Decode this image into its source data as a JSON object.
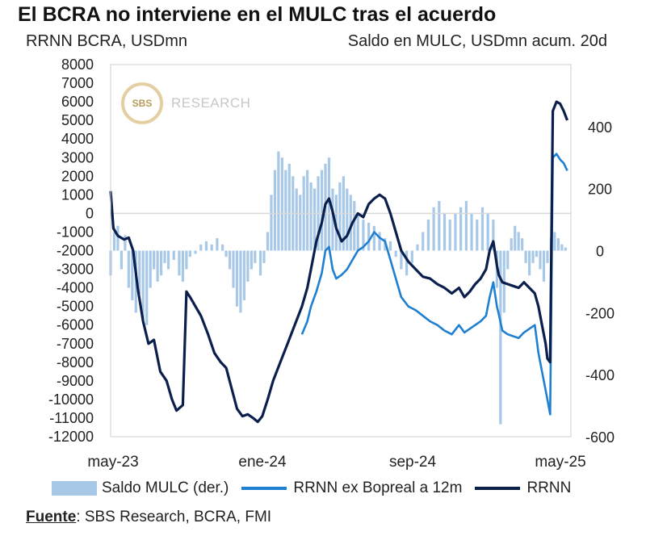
{
  "title": "El BCRA no interviene en el MULC tras el acuerdo",
  "subtitle_left": "RRNN BCRA, USDmn",
  "subtitle_right": "Saldo en MULC, USDmn acum. 20d",
  "logo": {
    "mark": "SBS",
    "text": "RESEARCH"
  },
  "source": {
    "label": "Fuente",
    "text": ": SBS Research, BCRA, FMI"
  },
  "legend": [
    {
      "name": "Saldo MULC (der.)",
      "type": "bar",
      "color": "#a8c8e8"
    },
    {
      "name": "RRNN ex Bopreal a 12m",
      "type": "line",
      "color": "#1f7fd1"
    },
    {
      "name": "RRNN",
      "type": "line",
      "color": "#0b1f4d"
    }
  ],
  "colors": {
    "bars": "#a8c8e8",
    "rrnn_ex": "#1f7fd1",
    "rrnn": "#0b1f4d",
    "grid": "#d9d9d9"
  },
  "chart_data": {
    "type": "line",
    "x_axis": {
      "ticks": [
        "may-23",
        "ene-24",
        "sep-24",
        "may-25"
      ]
    },
    "y_left": {
      "ylim": [
        -12000,
        8000
      ],
      "ticks": [
        8000,
        7000,
        6000,
        5000,
        4000,
        3000,
        2000,
        1000,
        0,
        -1000,
        -2000,
        -3000,
        -4000,
        -5000,
        -6000,
        -7000,
        -8000,
        -9000,
        -10000,
        -11000,
        -12000
      ]
    },
    "y_right": {
      "ylim": [
        -600,
        600
      ],
      "ticks": [
        400,
        200,
        0,
        -200,
        -400,
        -600
      ]
    },
    "series": [
      {
        "name": "RRNN",
        "axis": "left",
        "points": [
          [
            0,
            1200
          ],
          [
            3,
            -800
          ],
          [
            8,
            -1200
          ],
          [
            15,
            -1400
          ],
          [
            20,
            -1300
          ],
          [
            25,
            -2000
          ],
          [
            30,
            -4000
          ],
          [
            36,
            -5800
          ],
          [
            42,
            -7000
          ],
          [
            48,
            -6800
          ],
          [
            55,
            -8500
          ],
          [
            62,
            -9000
          ],
          [
            68,
            -10000
          ],
          [
            73,
            -10600
          ],
          [
            80,
            -10300
          ],
          [
            84,
            -4200
          ],
          [
            88,
            -4500
          ],
          [
            94,
            -5000
          ],
          [
            100,
            -5500
          ],
          [
            108,
            -6500
          ],
          [
            115,
            -7500
          ],
          [
            122,
            -8000
          ],
          [
            128,
            -8300
          ],
          [
            133,
            -9200
          ],
          [
            140,
            -10500
          ],
          [
            146,
            -10900
          ],
          [
            152,
            -10800
          ],
          [
            158,
            -11000
          ],
          [
            163,
            -11200
          ],
          [
            168,
            -10900
          ],
          [
            174,
            -10000
          ],
          [
            180,
            -9000
          ],
          [
            188,
            -8000
          ],
          [
            196,
            -7000
          ],
          [
            204,
            -6000
          ],
          [
            212,
            -5000
          ],
          [
            218,
            -4000
          ],
          [
            222,
            -3000
          ],
          [
            228,
            -1500
          ],
          [
            234,
            -500
          ],
          [
            238,
            500
          ],
          [
            242,
            800
          ],
          [
            246,
            100
          ],
          [
            250,
            -800
          ],
          [
            256,
            -1500
          ],
          [
            262,
            -1200
          ],
          [
            268,
            -500
          ],
          [
            274,
            0
          ],
          [
            280,
            -200
          ],
          [
            286,
            500
          ],
          [
            292,
            800
          ],
          [
            298,
            1000
          ],
          [
            304,
            800
          ],
          [
            310,
            0
          ],
          [
            316,
            -1000
          ],
          [
            322,
            -2000
          ],
          [
            330,
            -2600
          ],
          [
            338,
            -3000
          ],
          [
            346,
            -3400
          ],
          [
            354,
            -3500
          ],
          [
            362,
            -3800
          ],
          [
            370,
            -4000
          ],
          [
            378,
            -4300
          ],
          [
            386,
            -4000
          ],
          [
            392,
            -4500
          ],
          [
            398,
            -4200
          ],
          [
            404,
            -3800
          ],
          [
            410,
            -3500
          ],
          [
            416,
            -3000
          ],
          [
            420,
            -2000
          ],
          [
            424,
            -1500
          ],
          [
            428,
            -2800
          ],
          [
            430,
            -3300
          ],
          [
            434,
            -3700
          ],
          [
            440,
            -3800
          ],
          [
            446,
            -3900
          ],
          [
            452,
            -4000
          ],
          [
            458,
            -3700
          ],
          [
            464,
            -4000
          ],
          [
            470,
            -4300
          ],
          [
            474,
            -5000
          ],
          [
            478,
            -6000
          ],
          [
            482,
            -7000
          ],
          [
            484,
            -7800
          ],
          [
            487,
            -8000
          ],
          [
            490,
            5500
          ],
          [
            494,
            6000
          ],
          [
            498,
            5900
          ],
          [
            502,
            5500
          ],
          [
            506,
            5000
          ]
        ]
      },
      {
        "name": "RRNN ex Bopreal a 12m",
        "axis": "left",
        "points": [
          [
            212,
            -6500
          ],
          [
            218,
            -5800
          ],
          [
            222,
            -5000
          ],
          [
            228,
            -4200
          ],
          [
            234,
            -3200
          ],
          [
            238,
            -2000
          ],
          [
            242,
            -1800
          ],
          [
            246,
            -3000
          ],
          [
            250,
            -3500
          ],
          [
            256,
            -3300
          ],
          [
            262,
            -3000
          ],
          [
            268,
            -2500
          ],
          [
            274,
            -2000
          ],
          [
            280,
            -1800
          ],
          [
            286,
            -1500
          ],
          [
            292,
            -1000
          ],
          [
            298,
            -1300
          ],
          [
            304,
            -1500
          ],
          [
            310,
            -2500
          ],
          [
            316,
            -3500
          ],
          [
            322,
            -4500
          ],
          [
            330,
            -5000
          ],
          [
            338,
            -5200
          ],
          [
            346,
            -5500
          ],
          [
            354,
            -5800
          ],
          [
            362,
            -6000
          ],
          [
            370,
            -6300
          ],
          [
            378,
            -6500
          ],
          [
            386,
            -6000
          ],
          [
            392,
            -6400
          ],
          [
            398,
            -6200
          ],
          [
            404,
            -6000
          ],
          [
            410,
            -5800
          ],
          [
            416,
            -5500
          ],
          [
            420,
            -4500
          ],
          [
            424,
            -3700
          ],
          [
            428,
            -5000
          ],
          [
            430,
            -5400
          ],
          [
            434,
            -6300
          ],
          [
            440,
            -6500
          ],
          [
            446,
            -6600
          ],
          [
            452,
            -6700
          ],
          [
            458,
            -6400
          ],
          [
            464,
            -6200
          ],
          [
            470,
            -6000
          ],
          [
            474,
            -7500
          ],
          [
            478,
            -8500
          ],
          [
            482,
            -9500
          ],
          [
            484,
            -10000
          ],
          [
            487,
            -10800
          ],
          [
            490,
            3000
          ],
          [
            494,
            3200
          ],
          [
            498,
            2900
          ],
          [
            502,
            2700
          ],
          [
            506,
            2300
          ]
        ]
      },
      {
        "name": "Saldo MULC (der.)",
        "axis": "right",
        "type": "bar",
        "points": [
          [
            0,
            -80
          ],
          [
            4,
            60
          ],
          [
            8,
            80
          ],
          [
            12,
            -60
          ],
          [
            16,
            50
          ],
          [
            20,
            -120
          ],
          [
            24,
            -160
          ],
          [
            28,
            -200
          ],
          [
            32,
            -140
          ],
          [
            36,
            -220
          ],
          [
            40,
            -240
          ],
          [
            44,
            -120
          ],
          [
            48,
            -60
          ],
          [
            52,
            -100
          ],
          [
            56,
            -80
          ],
          [
            60,
            -40
          ],
          [
            64,
            -60
          ],
          [
            70,
            -30
          ],
          [
            76,
            -80
          ],
          [
            80,
            -100
          ],
          [
            84,
            -60
          ],
          [
            88,
            -20
          ],
          [
            94,
            -10
          ],
          [
            100,
            20
          ],
          [
            106,
            30
          ],
          [
            112,
            20
          ],
          [
            118,
            40
          ],
          [
            124,
            20
          ],
          [
            128,
            -20
          ],
          [
            132,
            -60
          ],
          [
            136,
            -120
          ],
          [
            140,
            -180
          ],
          [
            144,
            -200
          ],
          [
            148,
            -160
          ],
          [
            152,
            -100
          ],
          [
            156,
            -60
          ],
          [
            160,
            -40
          ],
          [
            166,
            -80
          ],
          [
            170,
            -40
          ],
          [
            174,
            60
          ],
          [
            178,
            180
          ],
          [
            182,
            260
          ],
          [
            186,
            320
          ],
          [
            190,
            300
          ],
          [
            194,
            260
          ],
          [
            198,
            280
          ],
          [
            202,
            240
          ],
          [
            206,
            200
          ],
          [
            210,
            180
          ],
          [
            214,
            240
          ],
          [
            218,
            260
          ],
          [
            222,
            220
          ],
          [
            226,
            200
          ],
          [
            230,
            240
          ],
          [
            234,
            260
          ],
          [
            238,
            280
          ],
          [
            242,
            300
          ],
          [
            246,
            200
          ],
          [
            250,
            180
          ],
          [
            254,
            220
          ],
          [
            258,
            240
          ],
          [
            262,
            200
          ],
          [
            266,
            180
          ],
          [
            270,
            160
          ],
          [
            274,
            120
          ],
          [
            280,
            100
          ],
          [
            286,
            90
          ],
          [
            292,
            80
          ],
          [
            298,
            60
          ],
          [
            304,
            40
          ],
          [
            310,
            30
          ],
          [
            316,
            -20
          ],
          [
            322,
            -60
          ],
          [
            328,
            -80
          ],
          [
            334,
            -40
          ],
          [
            340,
            20
          ],
          [
            346,
            60
          ],
          [
            352,
            100
          ],
          [
            358,
            140
          ],
          [
            364,
            160
          ],
          [
            370,
            120
          ],
          [
            376,
            100
          ],
          [
            382,
            120
          ],
          [
            388,
            140
          ],
          [
            394,
            160
          ],
          [
            400,
            120
          ],
          [
            406,
            100
          ],
          [
            412,
            140
          ],
          [
            418,
            120
          ],
          [
            424,
            100
          ],
          [
            428,
            -120
          ],
          [
            432,
            -560
          ],
          [
            436,
            -200
          ],
          [
            440,
            -60
          ],
          [
            444,
            40
          ],
          [
            448,
            80
          ],
          [
            452,
            60
          ],
          [
            456,
            40
          ],
          [
            460,
            -40
          ],
          [
            464,
            -80
          ],
          [
            468,
            -40
          ],
          [
            472,
            -20
          ],
          [
            476,
            -60
          ],
          [
            480,
            -100
          ],
          [
            484,
            -40
          ],
          [
            488,
            40
          ],
          [
            492,
            60
          ],
          [
            496,
            40
          ],
          [
            500,
            20
          ],
          [
            504,
            10
          ]
        ]
      }
    ]
  }
}
